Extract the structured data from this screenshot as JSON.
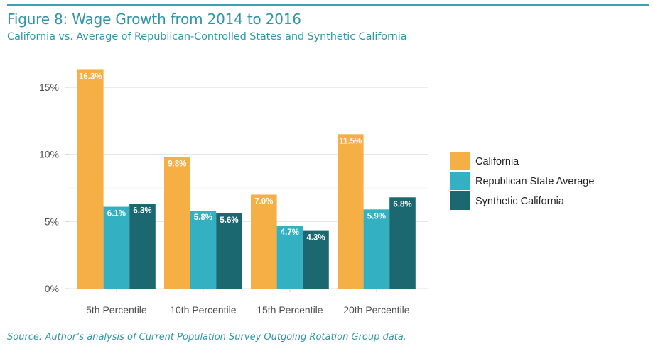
{
  "header": {
    "title": "Figure 8: Wage Growth from 2014 to 2016",
    "subtitle": "California vs. Average of Republican-Controlled States and Synthetic California"
  },
  "footer": {
    "source": "Source: Author’s analysis of Current Population Survey Outgoing Rotation Group data."
  },
  "chart_data": {
    "type": "bar",
    "title": "Figure 8: Wage Growth from 2014 to 2016",
    "subtitle": "California vs. Average of Republican-Controlled States and Synthetic California",
    "xlabel": "",
    "ylabel": "",
    "categories": [
      "5th Percentile",
      "10th Percentile",
      "15th Percentile",
      "20th Percentile"
    ],
    "series": [
      {
        "name": "California",
        "color": "#F5AF45",
        "values": [
          16.3,
          9.8,
          7.0,
          11.5
        ],
        "labels": [
          "16.3%",
          "9.8%",
          "7.0%",
          "11.5%"
        ]
      },
      {
        "name": "Republican State Average",
        "color": "#33B1C2",
        "values": [
          6.1,
          5.8,
          4.7,
          5.9
        ],
        "labels": [
          "6.1%",
          "5.8%",
          "4.7%",
          "5.9%"
        ]
      },
      {
        "name": "Synthetic California",
        "color": "#1C6870",
        "values": [
          6.3,
          5.6,
          4.3,
          6.8
        ],
        "labels": [
          "6.3%",
          "5.6%",
          "4.3%",
          "6.8%"
        ]
      }
    ],
    "yticks": [
      0,
      5,
      10,
      15
    ],
    "ytick_labels": [
      "0%",
      "5%",
      "10%",
      "15%"
    ],
    "ylim": [
      0,
      17
    ],
    "grid": true,
    "legend_position": "right",
    "data_labels": "inside-top"
  }
}
